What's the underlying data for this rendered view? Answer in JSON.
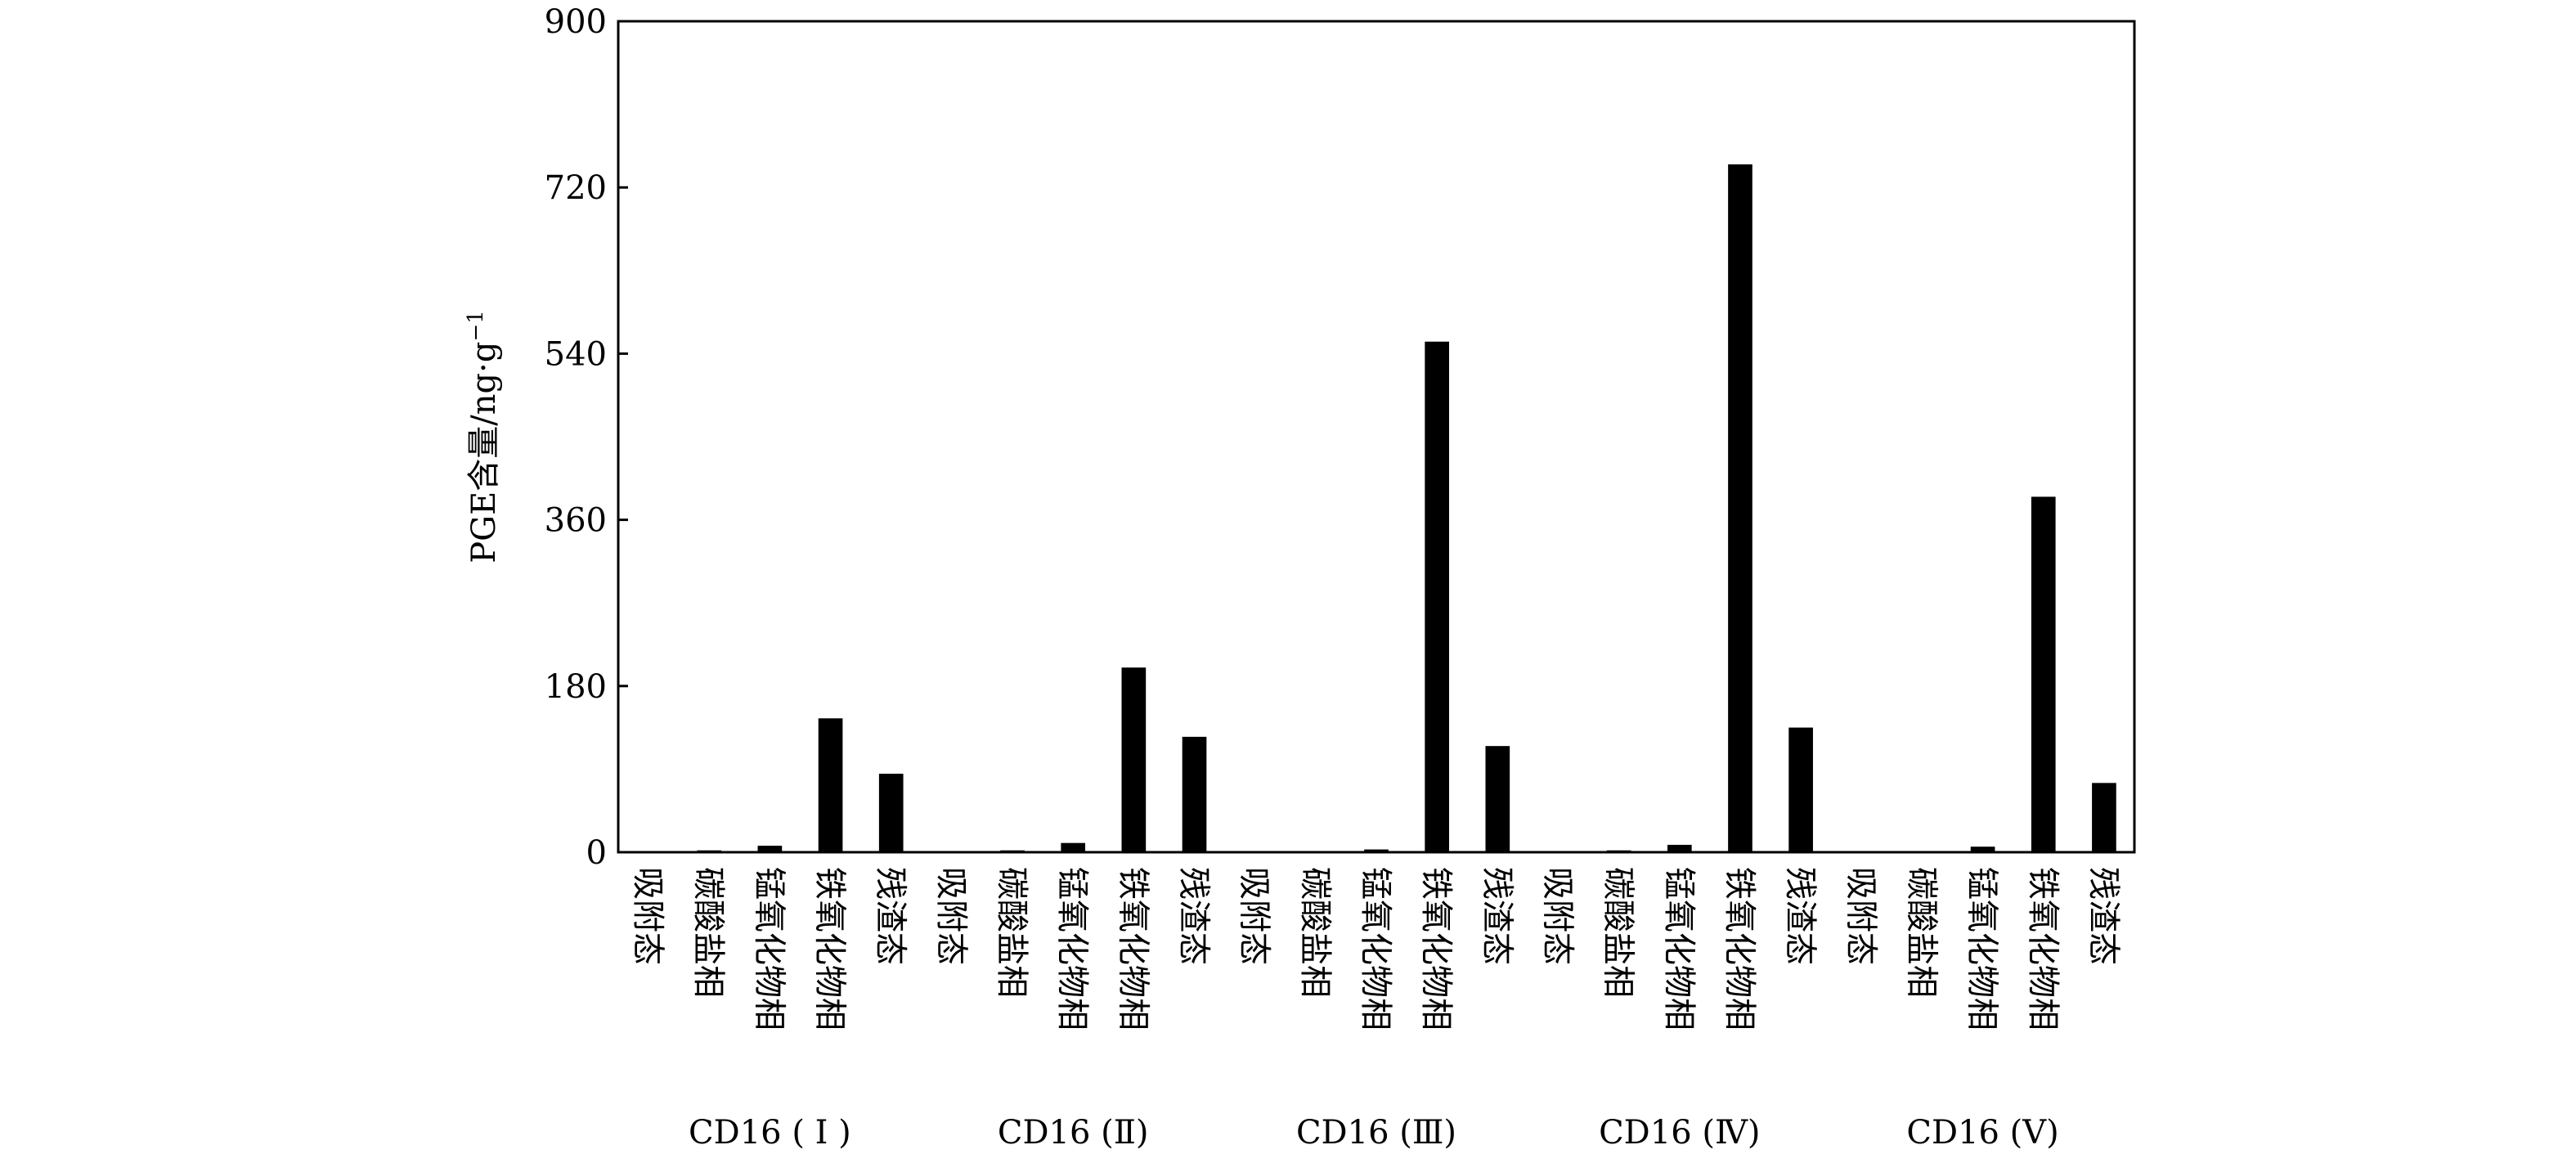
{
  "chart_data": {
    "type": "bar",
    "ylabel": "PGE含量/ng·g",
    "ylabel_superscript": "−1",
    "ylim": [
      0,
      900
    ],
    "yticks": [
      "0",
      "180",
      "360",
      "540",
      "720",
      "900"
    ],
    "grid": false,
    "legend": "none",
    "bar_color": "#000000",
    "categories": [
      "吸附态",
      "碳酸盐相",
      "锰氧化物相",
      "铁氧化物相",
      "残渣态"
    ],
    "groups": [
      {
        "label": "CD16 ( Ⅰ )",
        "values": [
          0.5,
          2,
          7,
          145,
          85
        ]
      },
      {
        "label": "CD16 (Ⅱ)",
        "values": [
          0.5,
          2,
          10,
          200,
          125
        ]
      },
      {
        "label": "CD16 (Ⅲ)",
        "values": [
          0.5,
          1,
          3,
          553,
          115
        ]
      },
      {
        "label": "CD16 (Ⅳ)",
        "values": [
          0.5,
          2,
          8,
          745,
          135
        ]
      },
      {
        "label": "CD16 (Ⅴ)",
        "values": [
          0.5,
          1,
          6,
          385,
          75
        ]
      }
    ]
  }
}
